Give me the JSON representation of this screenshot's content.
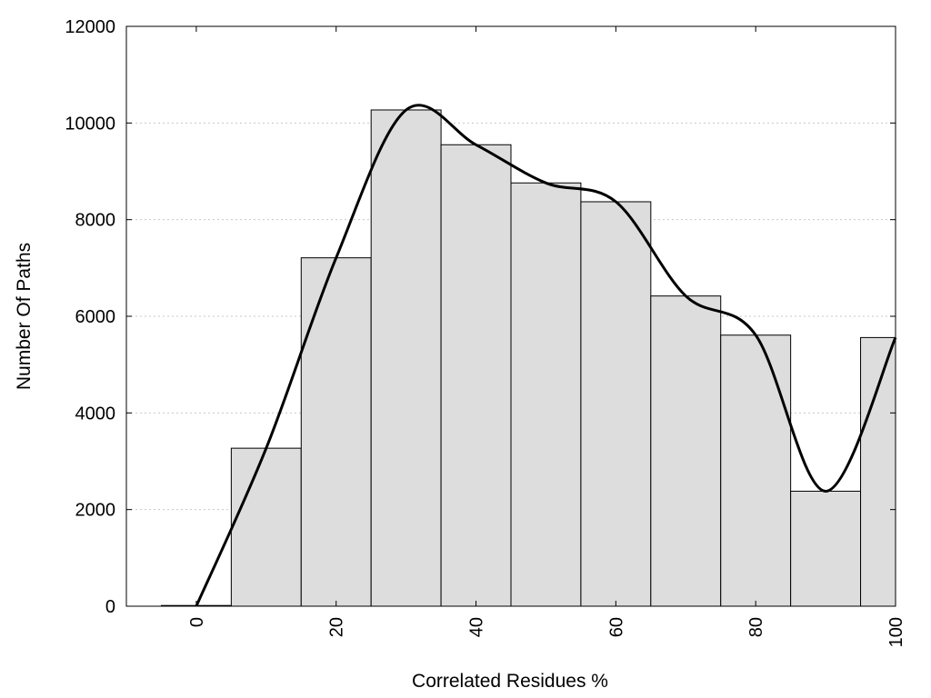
{
  "chart_data": {
    "type": "bar",
    "title": "",
    "xlabel": "Correlated Residues %",
    "ylabel": "Number Of Paths",
    "xlim": [
      -10,
      100
    ],
    "ylim": [
      0,
      12000
    ],
    "x_ticks": [
      0,
      20,
      40,
      60,
      80,
      100
    ],
    "y_ticks": [
      0,
      2000,
      4000,
      6000,
      8000,
      10000,
      12000
    ],
    "x_tick_labels": [
      "0",
      "20",
      "40",
      "60",
      "80",
      "100"
    ],
    "y_tick_labels": [
      "0",
      "2000",
      "4000",
      "6000",
      "8000",
      "10000",
      "12000"
    ],
    "grid": "horizontal dotted",
    "bar_color": "#dddddd",
    "bar_edge_color": "#000000",
    "line_color": "#000000",
    "bars": {
      "x": [
        0,
        10,
        20,
        30,
        40,
        50,
        60,
        70,
        80,
        90,
        100
      ],
      "width": 10,
      "values": [
        15,
        3270,
        7210,
        10270,
        9550,
        8760,
        8370,
        6420,
        5610,
        2380,
        5560
      ]
    },
    "smooth_curve": {
      "x": [
        0,
        10,
        20,
        30,
        40,
        50,
        60,
        70,
        80,
        90,
        100
      ],
      "y": [
        0,
        3270,
        7210,
        10270,
        9550,
        8760,
        8370,
        6420,
        5610,
        2380,
        5560
      ]
    }
  }
}
